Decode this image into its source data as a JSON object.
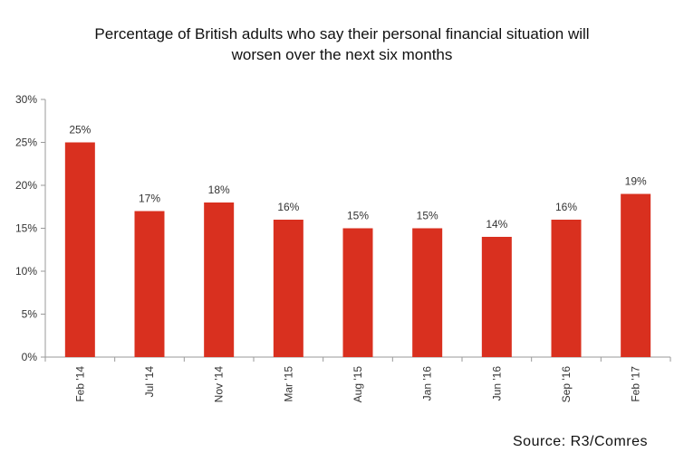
{
  "title_line1": "Percentage of British adults who say their personal financial situation will",
  "title_line2": "worsen over the next six months",
  "source": "Source: R3/Comres",
  "colors": {
    "bar": "#d9301f",
    "axis": "#9a9a9a",
    "text": "#333333"
  },
  "chart_data": {
    "type": "bar",
    "title": "Percentage of British adults who say their personal financial situation will worsen over the next six months",
    "categories": [
      "Feb '14",
      "Jul '14",
      "Nov '14",
      "Mar '15",
      "Aug '15",
      "Jan '16",
      "Jun '16",
      "Sep '16",
      "Feb '17"
    ],
    "values": [
      25,
      17,
      18,
      16,
      15,
      15,
      14,
      16,
      19
    ],
    "data_labels": [
      "25%",
      "17%",
      "18%",
      "16%",
      "15%",
      "15%",
      "14%",
      "16%",
      "19%"
    ],
    "yticks": [
      0,
      5,
      10,
      15,
      20,
      25,
      30
    ],
    "ytick_labels": [
      "0%",
      "5%",
      "10%",
      "15%",
      "20%",
      "25%",
      "30%"
    ],
    "ylim": [
      0,
      30
    ],
    "grid": false,
    "legend": "none"
  }
}
